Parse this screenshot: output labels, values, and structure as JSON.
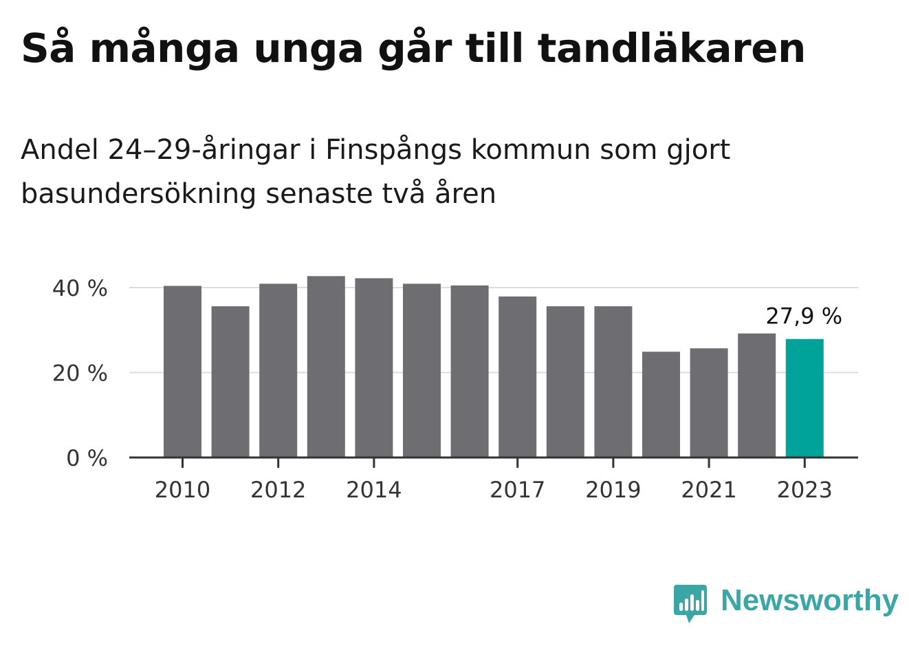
{
  "title": "Så många unga går till tandläkaren",
  "subtitle": "Andel 24–29-åringar i Finspångs kommun som gjort basundersökning senaste två åren",
  "brand": {
    "name": "Newsworthy",
    "color": "#3aa6a6",
    "icon": "bar-chart-speech-bubble-icon"
  },
  "chart_data": {
    "type": "bar",
    "title": "Så många unga går till tandläkaren",
    "subtitle": "Andel 24–29-åringar i Finspångs kommun som gjort basundersökning senaste två åren",
    "categories": [
      "2010",
      "2011",
      "2012",
      "2013",
      "2014",
      "2015",
      "2016",
      "2017",
      "2018",
      "2019",
      "2020",
      "2021",
      "2022",
      "2023"
    ],
    "values": [
      40.4,
      35.6,
      40.9,
      42.7,
      42.2,
      40.9,
      40.5,
      37.9,
      35.6,
      35.6,
      24.9,
      25.7,
      29.2,
      27.9
    ],
    "x_tick_labels": [
      "2010",
      "",
      "2012",
      "",
      "2014",
      "",
      "",
      "2017",
      "",
      "2019",
      "",
      "2021",
      "",
      "2023"
    ],
    "y_ticks": [
      0,
      20,
      40
    ],
    "y_tick_labels": [
      "0 %",
      "20 %",
      "40 %"
    ],
    "ylim": [
      0,
      40
    ],
    "xlabel": "",
    "ylabel": "",
    "grid": true,
    "bar_color": "#6e6d72",
    "highlight_color": "#00a39a",
    "highlight_index": 13,
    "annotation": "27,9 %"
  }
}
